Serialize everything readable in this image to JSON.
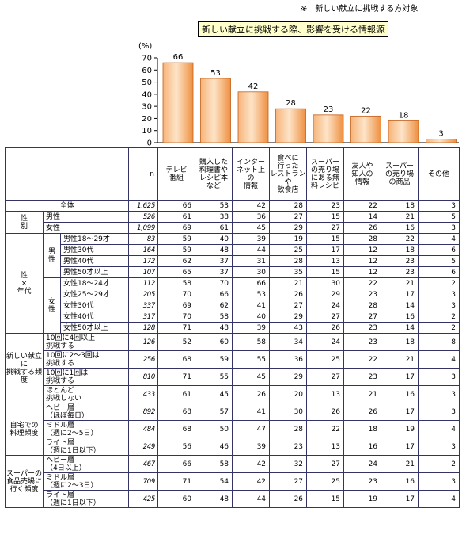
{
  "note": "※　新しい献立に挑戦する方対象",
  "chart_data": {
    "type": "bar",
    "title": "新しい献立に挑戦する際、影響を受ける情報源",
    "ylabel": "(%)",
    "ylim": [
      0,
      70
    ],
    "yticks": [
      0,
      10,
      20,
      30,
      40,
      50,
      60,
      70
    ],
    "values": [
      66,
      53,
      42,
      28,
      23,
      22,
      18,
      3
    ],
    "categories": [
      "テレビ番組",
      "購入した料理書やレシピ本など",
      "インターネット上の情報",
      "食べに行ったレストランや飲食店",
      "スーパーの売り場にある無料レシピ",
      "友人や知人の情報",
      "スーパーの売り場の商品",
      "その他"
    ],
    "bar_color": "#f4a05a",
    "grid": false
  },
  "table": {
    "n_label": "n",
    "headers": [
      [
        "テレビ",
        "番組"
      ],
      [
        "購入した",
        "料理書や",
        "レシピ本",
        "など"
      ],
      [
        "インター",
        "ネット上",
        "の",
        "情報"
      ],
      [
        "食べに",
        "行った",
        "レストラン",
        "や",
        "飲食店"
      ],
      [
        "スーパー",
        "の売り場",
        "にある無",
        "料レシピ"
      ],
      [
        "友人や",
        "知人の",
        "情報"
      ],
      [
        "スーパー",
        "の売り場",
        "の商品"
      ],
      [
        "その他"
      ]
    ],
    "total": {
      "label": "全体",
      "n": "1,625",
      "v": [
        66,
        53,
        42,
        28,
        23,
        22,
        18,
        3
      ]
    },
    "gender": {
      "label": "性\n別",
      "rows": [
        {
          "label": "男性",
          "n": "526",
          "v": [
            61,
            38,
            36,
            27,
            15,
            14,
            21,
            5
          ]
        },
        {
          "label": "女性",
          "n": "1,099",
          "v": [
            69,
            61,
            45,
            29,
            27,
            26,
            16,
            3
          ]
        }
      ]
    },
    "gender_age": {
      "label": "性\n×\n年代",
      "male_label": "男\n性",
      "female_label": "女\n性",
      "male": [
        {
          "label": "男性18～29才",
          "n": "83",
          "v": [
            59,
            40,
            39,
            19,
            15,
            28,
            22,
            4
          ]
        },
        {
          "label": "男性30代",
          "n": "164",
          "v": [
            59,
            48,
            44,
            25,
            17,
            12,
            18,
            6
          ]
        },
        {
          "label": "男性40代",
          "n": "172",
          "v": [
            62,
            37,
            31,
            28,
            13,
            12,
            23,
            5
          ]
        },
        {
          "label": "男性50才以上",
          "n": "107",
          "v": [
            65,
            37,
            30,
            35,
            15,
            12,
            23,
            6
          ]
        }
      ],
      "female": [
        {
          "label": "女性18～24才",
          "n": "112",
          "v": [
            58,
            70,
            66,
            21,
            30,
            22,
            21,
            2
          ]
        },
        {
          "label": "女性25～29才",
          "n": "205",
          "v": [
            70,
            66,
            53,
            26,
            29,
            23,
            17,
            3
          ]
        },
        {
          "label": "女性30代",
          "n": "337",
          "v": [
            69,
            62,
            41,
            27,
            24,
            28,
            14,
            3
          ]
        },
        {
          "label": "女性40代",
          "n": "317",
          "v": [
            70,
            58,
            40,
            29,
            27,
            27,
            16,
            2
          ]
        },
        {
          "label": "女性50才以上",
          "n": "128",
          "v": [
            71,
            48,
            39,
            43,
            26,
            23,
            14,
            2
          ]
        }
      ]
    },
    "freq": {
      "label": "新しい献立に\n挑戦する頻度",
      "rows": [
        {
          "label": "10回に4回以上\n挑戦する",
          "n": "126",
          "v": [
            52,
            60,
            58,
            34,
            24,
            23,
            18,
            8
          ]
        },
        {
          "label": "10回に2～3回は\n挑戦する",
          "n": "256",
          "v": [
            68,
            59,
            55,
            36,
            25,
            22,
            21,
            4
          ]
        },
        {
          "label": "10回に1回は\n挑戦する",
          "n": "810",
          "v": [
            71,
            55,
            45,
            29,
            27,
            23,
            17,
            3
          ]
        },
        {
          "label": "ほとんど\n挑戦しない",
          "n": "433",
          "v": [
            61,
            45,
            26,
            20,
            13,
            21,
            16,
            3
          ]
        }
      ]
    },
    "cook": {
      "label": "自宅での\n料理頻度",
      "rows": [
        {
          "label": "ヘビー層\n（ほぼ毎日）",
          "n": "892",
          "v": [
            68,
            57,
            41,
            30,
            26,
            26,
            17,
            3
          ]
        },
        {
          "label": "ミドル層\n（週に2～5日）",
          "n": "484",
          "v": [
            68,
            50,
            47,
            28,
            22,
            18,
            19,
            4
          ]
        },
        {
          "label": "ライト層\n（週に1日以下）",
          "n": "249",
          "v": [
            56,
            46,
            39,
            23,
            13,
            16,
            17,
            3
          ]
        }
      ]
    },
    "shop": {
      "label": "スーパーの\n食品売場に\n行く頻度",
      "rows": [
        {
          "label": "ヘビー層\n（4日以上）",
          "n": "467",
          "v": [
            66,
            58,
            42,
            32,
            27,
            24,
            21,
            2
          ]
        },
        {
          "label": "ミドル層\n（週に2～3日）",
          "n": "709",
          "v": [
            71,
            54,
            42,
            27,
            25,
            23,
            16,
            3
          ]
        },
        {
          "label": "ライト層\n（週に1日以下）",
          "n": "425",
          "v": [
            60,
            48,
            44,
            26,
            15,
            19,
            17,
            4
          ]
        }
      ]
    }
  }
}
